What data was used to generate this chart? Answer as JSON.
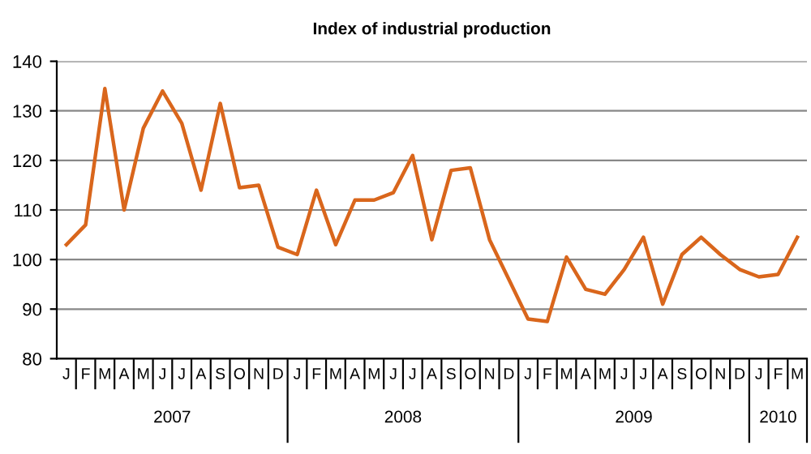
{
  "chart_data": {
    "type": "line",
    "title": "Index of industrial production",
    "categories": [
      "J",
      "F",
      "M",
      "A",
      "M",
      "J",
      "J",
      "A",
      "S",
      "O",
      "N",
      "D",
      "J",
      "F",
      "M",
      "A",
      "M",
      "J",
      "J",
      "A",
      "S",
      "O",
      "N",
      "D",
      "J",
      "F",
      "M",
      "A",
      "M",
      "J",
      "J",
      "A",
      "S",
      "O",
      "N",
      "D",
      "J",
      "F",
      "M"
    ],
    "series": [
      {
        "color": "#d9661c",
        "values": [
          103,
          107,
          134.5,
          110,
          126.5,
          134,
          127.5,
          114,
          131.5,
          114.5,
          115,
          102.5,
          101,
          114,
          103,
          112,
          112,
          113.5,
          121,
          104,
          118,
          118.5,
          104,
          96,
          88,
          87.5,
          100.5,
          94,
          93,
          98,
          104.5,
          91,
          101,
          104.5,
          101,
          98,
          96.5,
          97,
          104.5
        ]
      }
    ],
    "ylim": [
      80,
      140
    ],
    "yticks": [
      80,
      90,
      100,
      110,
      120,
      130,
      140
    ],
    "grid": "y",
    "marker": "none",
    "line_style": "solid",
    "legend": false,
    "annotations": [
      "2007",
      "2008",
      "2009",
      "2010"
    ]
  }
}
